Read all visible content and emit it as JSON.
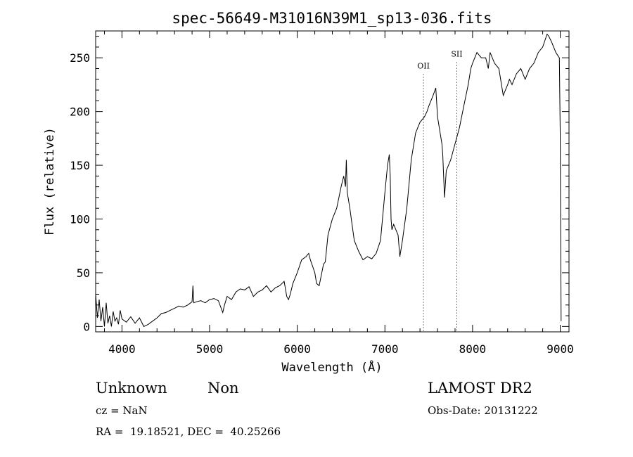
{
  "chart_data": {
    "type": "line",
    "title": "spec-56649-M31016N39M1_sp13-036.fits",
    "xlabel": "Wavelength (Å)",
    "ylabel": "Flux (relative)",
    "xlim": [
      3700,
      9100
    ],
    "ylim": [
      -5,
      275
    ],
    "xticks": [
      4000,
      5000,
      6000,
      7000,
      8000,
      9000
    ],
    "yticks": [
      0,
      50,
      100,
      150,
      200,
      250
    ],
    "grid": false,
    "line_color": "#000000",
    "annotations": [
      {
        "label": "OII",
        "x": 7440,
        "label_y": 240
      },
      {
        "label": "SII",
        "x": 7820,
        "label_y": 251
      }
    ],
    "series": [
      {
        "x": [
          3700,
          3720,
          3740,
          3760,
          3780,
          3800,
          3820,
          3840,
          3860,
          3880,
          3900,
          3920,
          3940,
          3960,
          3980,
          4000,
          4050,
          4100,
          4150,
          4200,
          4250,
          4300,
          4350,
          4400,
          4450,
          4500,
          4550,
          4600,
          4650,
          4700,
          4750,
          4800,
          4810,
          4820,
          4850,
          4900,
          4950,
          5000,
          5050,
          5100,
          5150,
          5170,
          5200,
          5250,
          5300,
          5350,
          5400,
          5450,
          5500,
          5550,
          5600,
          5650,
          5700,
          5750,
          5800,
          5850,
          5880,
          5900,
          5920,
          5950,
          6000,
          6050,
          6100,
          6130,
          6150,
          6200,
          6220,
          6250,
          6300,
          6320,
          6350,
          6400,
          6450,
          6500,
          6530,
          6550,
          6560,
          6570,
          6600,
          6650,
          6700,
          6750,
          6800,
          6850,
          6900,
          6950,
          7000,
          7030,
          7050,
          7060,
          7070,
          7080,
          7100,
          7150,
          7170,
          7200,
          7250,
          7300,
          7350,
          7400,
          7450,
          7480,
          7500,
          7550,
          7580,
          7600,
          7650,
          7660,
          7680,
          7700,
          7750,
          7800,
          7850,
          7900,
          7950,
          7980,
          8000,
          8050,
          8100,
          8150,
          8180,
          8200,
          8250,
          8300,
          8350,
          8400,
          8420,
          8450,
          8500,
          8550,
          8600,
          8650,
          8700,
          8750,
          8800,
          8850,
          8870,
          8900,
          8950,
          8990,
          9000,
          9010
        ],
        "y": [
          30,
          8,
          25,
          5,
          18,
          0,
          22,
          3,
          10,
          0,
          14,
          5,
          8,
          2,
          15,
          7,
          4,
          9,
          3,
          8,
          0,
          2,
          5,
          8,
          12,
          13,
          15,
          17,
          19,
          18,
          20,
          23,
          38,
          22,
          23,
          24,
          22,
          25,
          26,
          24,
          13,
          20,
          28,
          25,
          32,
          35,
          34,
          37,
          28,
          32,
          34,
          38,
          32,
          36,
          38,
          42,
          28,
          25,
          30,
          40,
          50,
          62,
          65,
          68,
          62,
          50,
          40,
          38,
          58,
          60,
          85,
          100,
          110,
          130,
          140,
          130,
          155,
          125,
          110,
          80,
          70,
          62,
          65,
          63,
          68,
          80,
          125,
          150,
          160,
          140,
          100,
          90,
          95,
          85,
          65,
          80,
          110,
          155,
          180,
          190,
          195,
          200,
          205,
          215,
          222,
          195,
          170,
          160,
          120,
          145,
          155,
          170,
          185,
          205,
          225,
          240,
          245,
          255,
          250,
          250,
          240,
          255,
          245,
          240,
          215,
          225,
          230,
          225,
          235,
          240,
          230,
          240,
          245,
          255,
          260,
          272,
          270,
          265,
          255,
          250,
          180,
          5
        ]
      }
    ]
  },
  "info": {
    "left_line1_a": "Unknown",
    "left_line1_b": "Non",
    "left_line2": "cz = NaN",
    "left_line3": "RA =  19.18521, DEC =  40.25266",
    "right_line1": "LAMOST DR2",
    "right_line2": "Obs-Date: 20131222"
  }
}
